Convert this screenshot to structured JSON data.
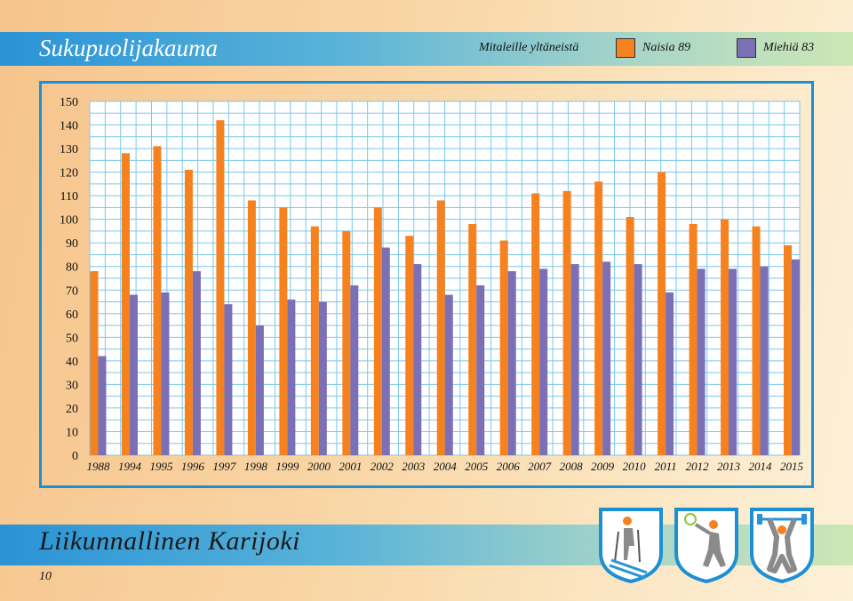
{
  "header": {
    "title": "Sukupuolijakauma",
    "legend_caption": "Mitaleille yltäneistä"
  },
  "legend": [
    {
      "label": "Naisia 89",
      "color": "#f5821f"
    },
    {
      "label": "Miehiä 83",
      "color": "#7b6fb6"
    }
  ],
  "chart_data": {
    "type": "bar",
    "categories": [
      "1988",
      "1994",
      "1995",
      "1996",
      "1997",
      "1998",
      "1999",
      "2000",
      "2001",
      "2002",
      "2003",
      "2004",
      "2005",
      "2006",
      "2007",
      "2008",
      "2009",
      "2010",
      "2011",
      "2012",
      "2013",
      "2014",
      "2015"
    ],
    "series": [
      {
        "name": "Naisia 89",
        "color": "#f5821f",
        "values": [
          78,
          128,
          131,
          121,
          142,
          108,
          105,
          97,
          95,
          105,
          93,
          108,
          98,
          91,
          111,
          112,
          116,
          101,
          120,
          98,
          100,
          97,
          89
        ]
      },
      {
        "name": "Miehiä 83",
        "color": "#7b6fb6",
        "values": [
          42,
          68,
          69,
          78,
          64,
          55,
          66,
          65,
          72,
          88,
          81,
          68,
          72,
          78,
          79,
          81,
          82,
          81,
          69,
          79,
          79,
          80,
          83
        ]
      }
    ],
    "ylim": [
      0,
      150
    ],
    "yticks": [
      0,
      10,
      20,
      30,
      40,
      50,
      60,
      70,
      80,
      90,
      100,
      110,
      120,
      130,
      140,
      150
    ],
    "grid": true,
    "legend_position": "top-right"
  },
  "footer": {
    "title": "Liikunnallinen Karijoki",
    "page_number": "10"
  },
  "badges": [
    {
      "icon": "skier-icon"
    },
    {
      "icon": "runner-icon"
    },
    {
      "icon": "weightlifter-icon"
    }
  ],
  "colors": {
    "accent": "#1f8fd3",
    "grid": "#7cc7ea"
  }
}
